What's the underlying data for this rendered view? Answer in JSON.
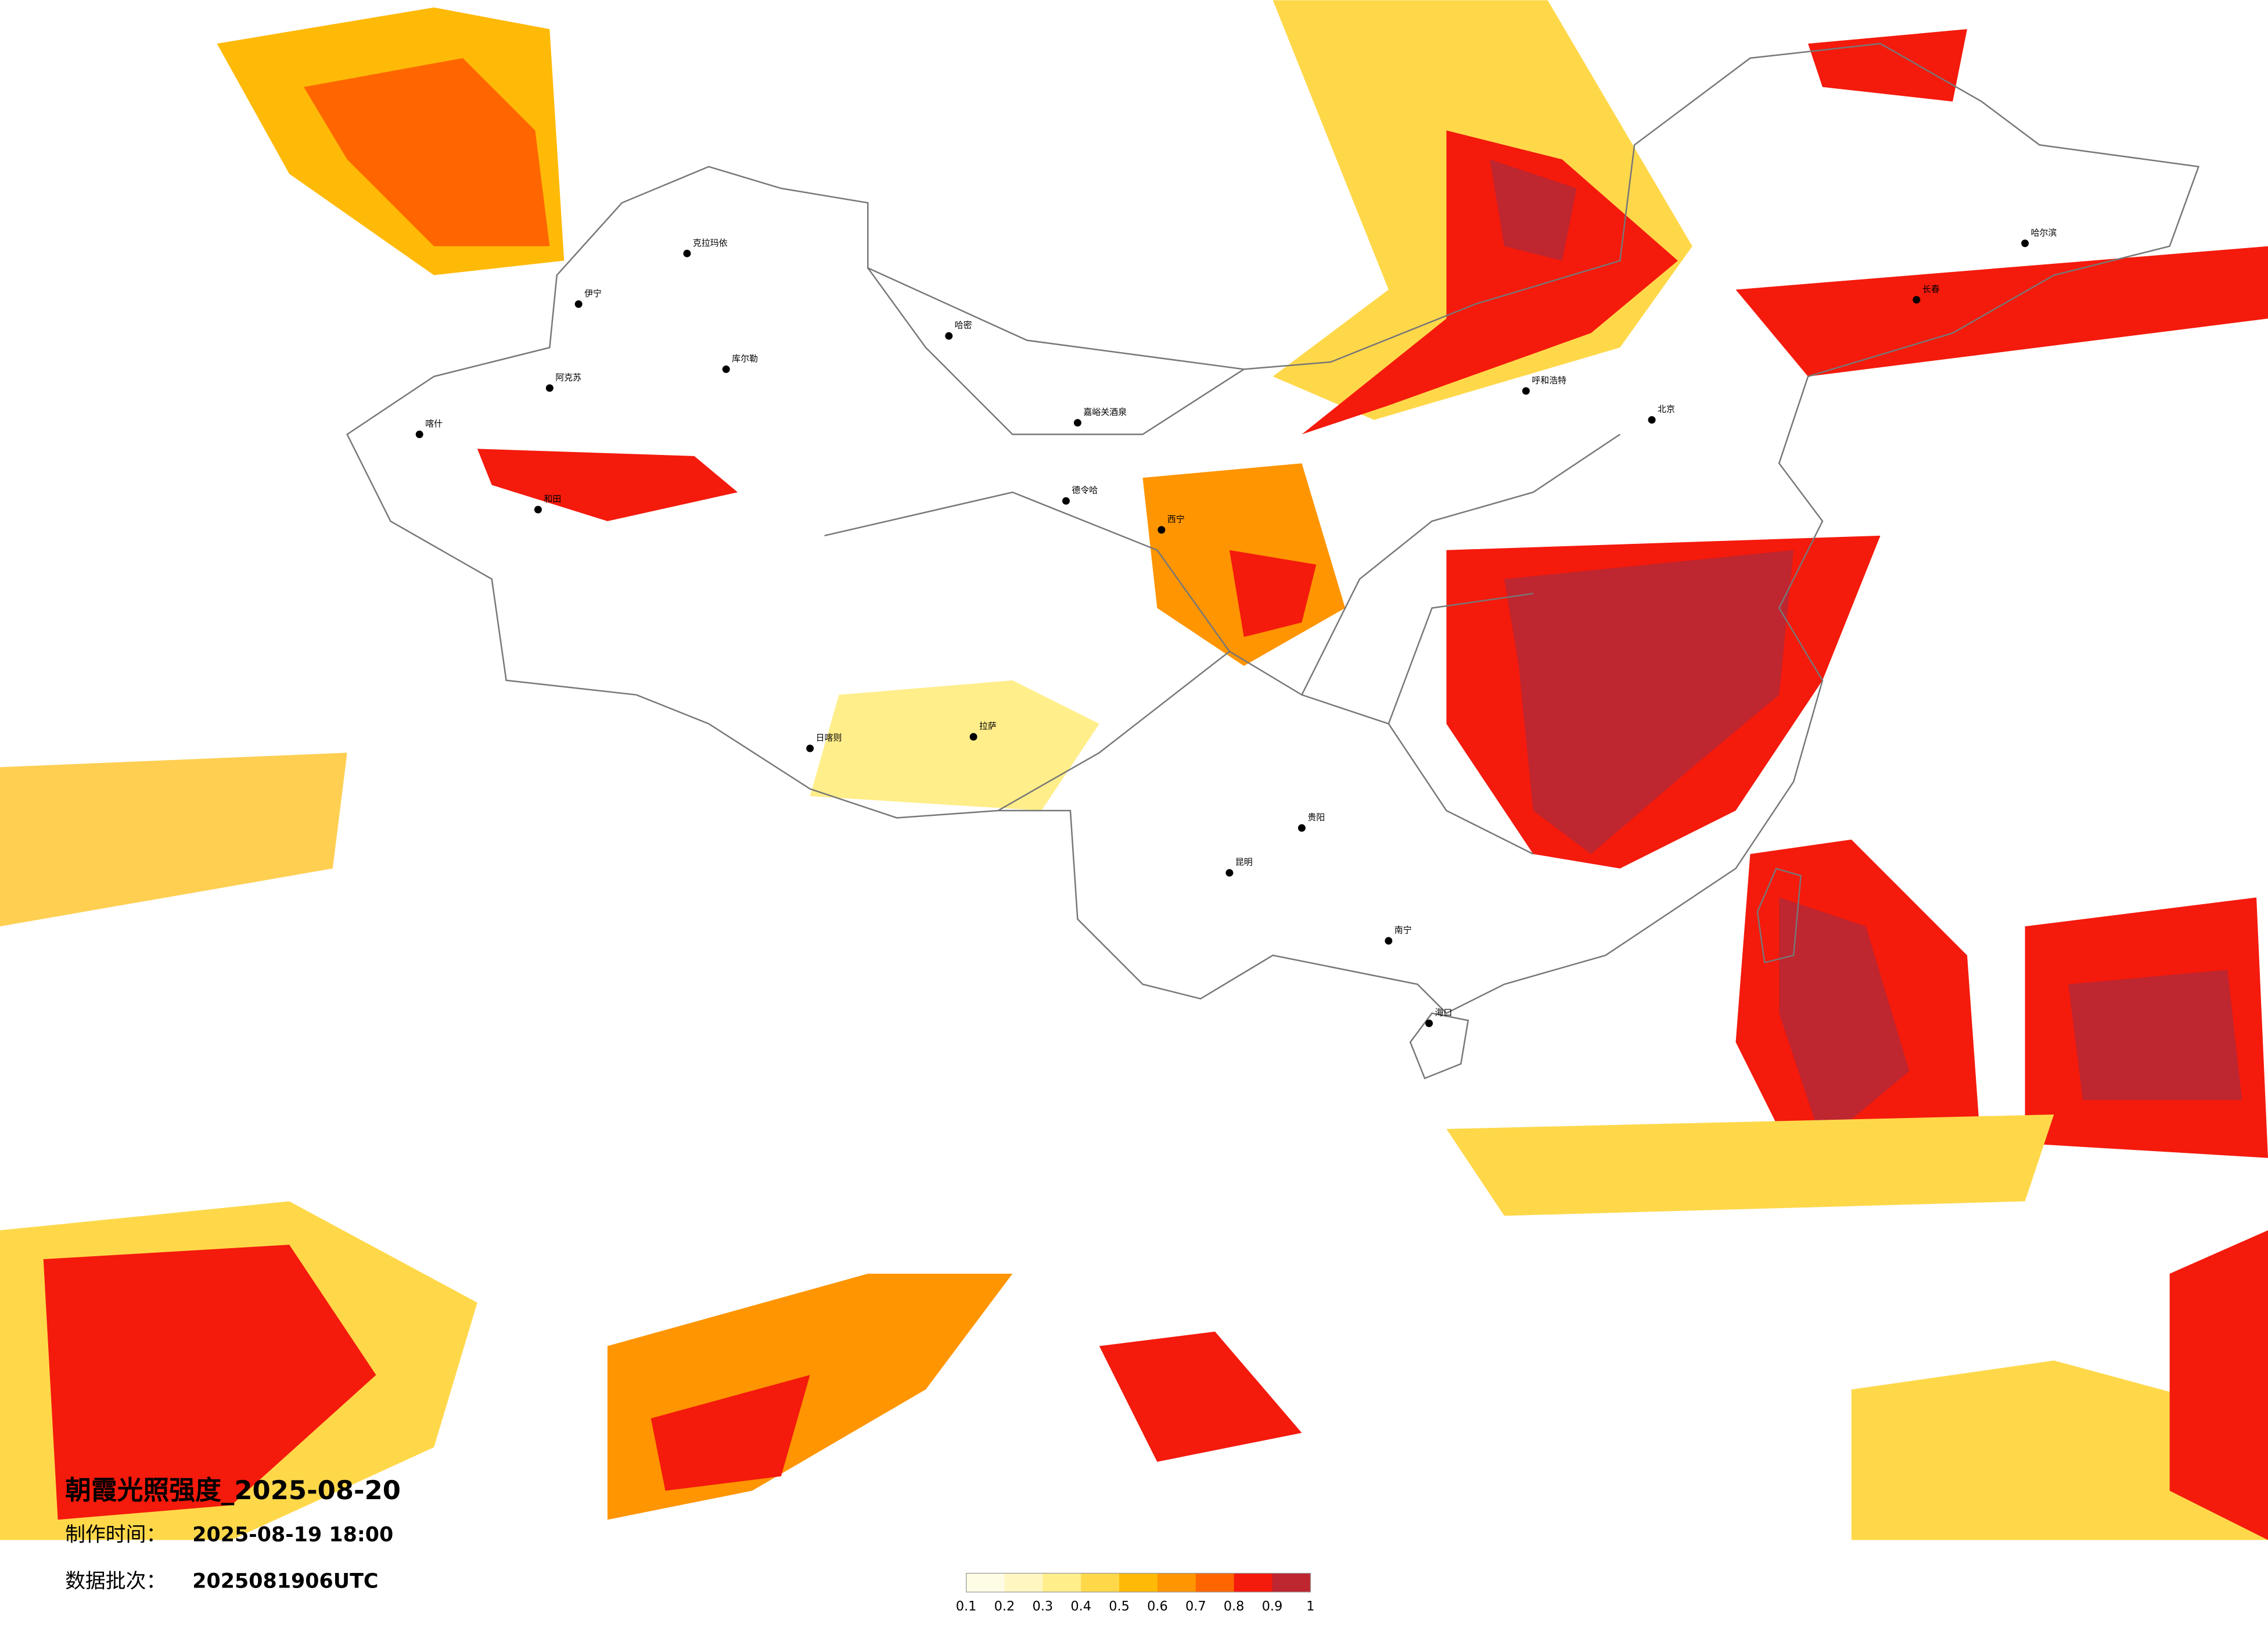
{
  "header": {
    "title": "朝霞光照强度_2025-08-20",
    "made_label": "制作时间：",
    "made_time": "2025-08-19 18:00",
    "batch_label": "数据批次：",
    "batch": "2025081906UTC"
  },
  "legend": {
    "colors": [
      "#fffce6",
      "#fff6c2",
      "#ffee8a",
      "#ffd84a",
      "#ffba08",
      "#ff9500",
      "#ff6600",
      "#f41a0c",
      "#be2630"
    ],
    "ticks": [
      0.1,
      0.2,
      0.3,
      0.4,
      0.5,
      0.6,
      0.7,
      0.8,
      0.9,
      1
    ]
  },
  "cities": [
    "克拉玛依",
    "伊宁",
    "库尔勒",
    "阿克苏",
    "哈密",
    "喀什",
    "和田",
    "嘉峪关酒泉",
    "德令哈",
    "西宁",
    "拉萨",
    "日喀则",
    "昆明",
    "贵阳",
    "南宁",
    "海口",
    "哈尔滨",
    "长春",
    "北京",
    "呼和浩特"
  ]
}
